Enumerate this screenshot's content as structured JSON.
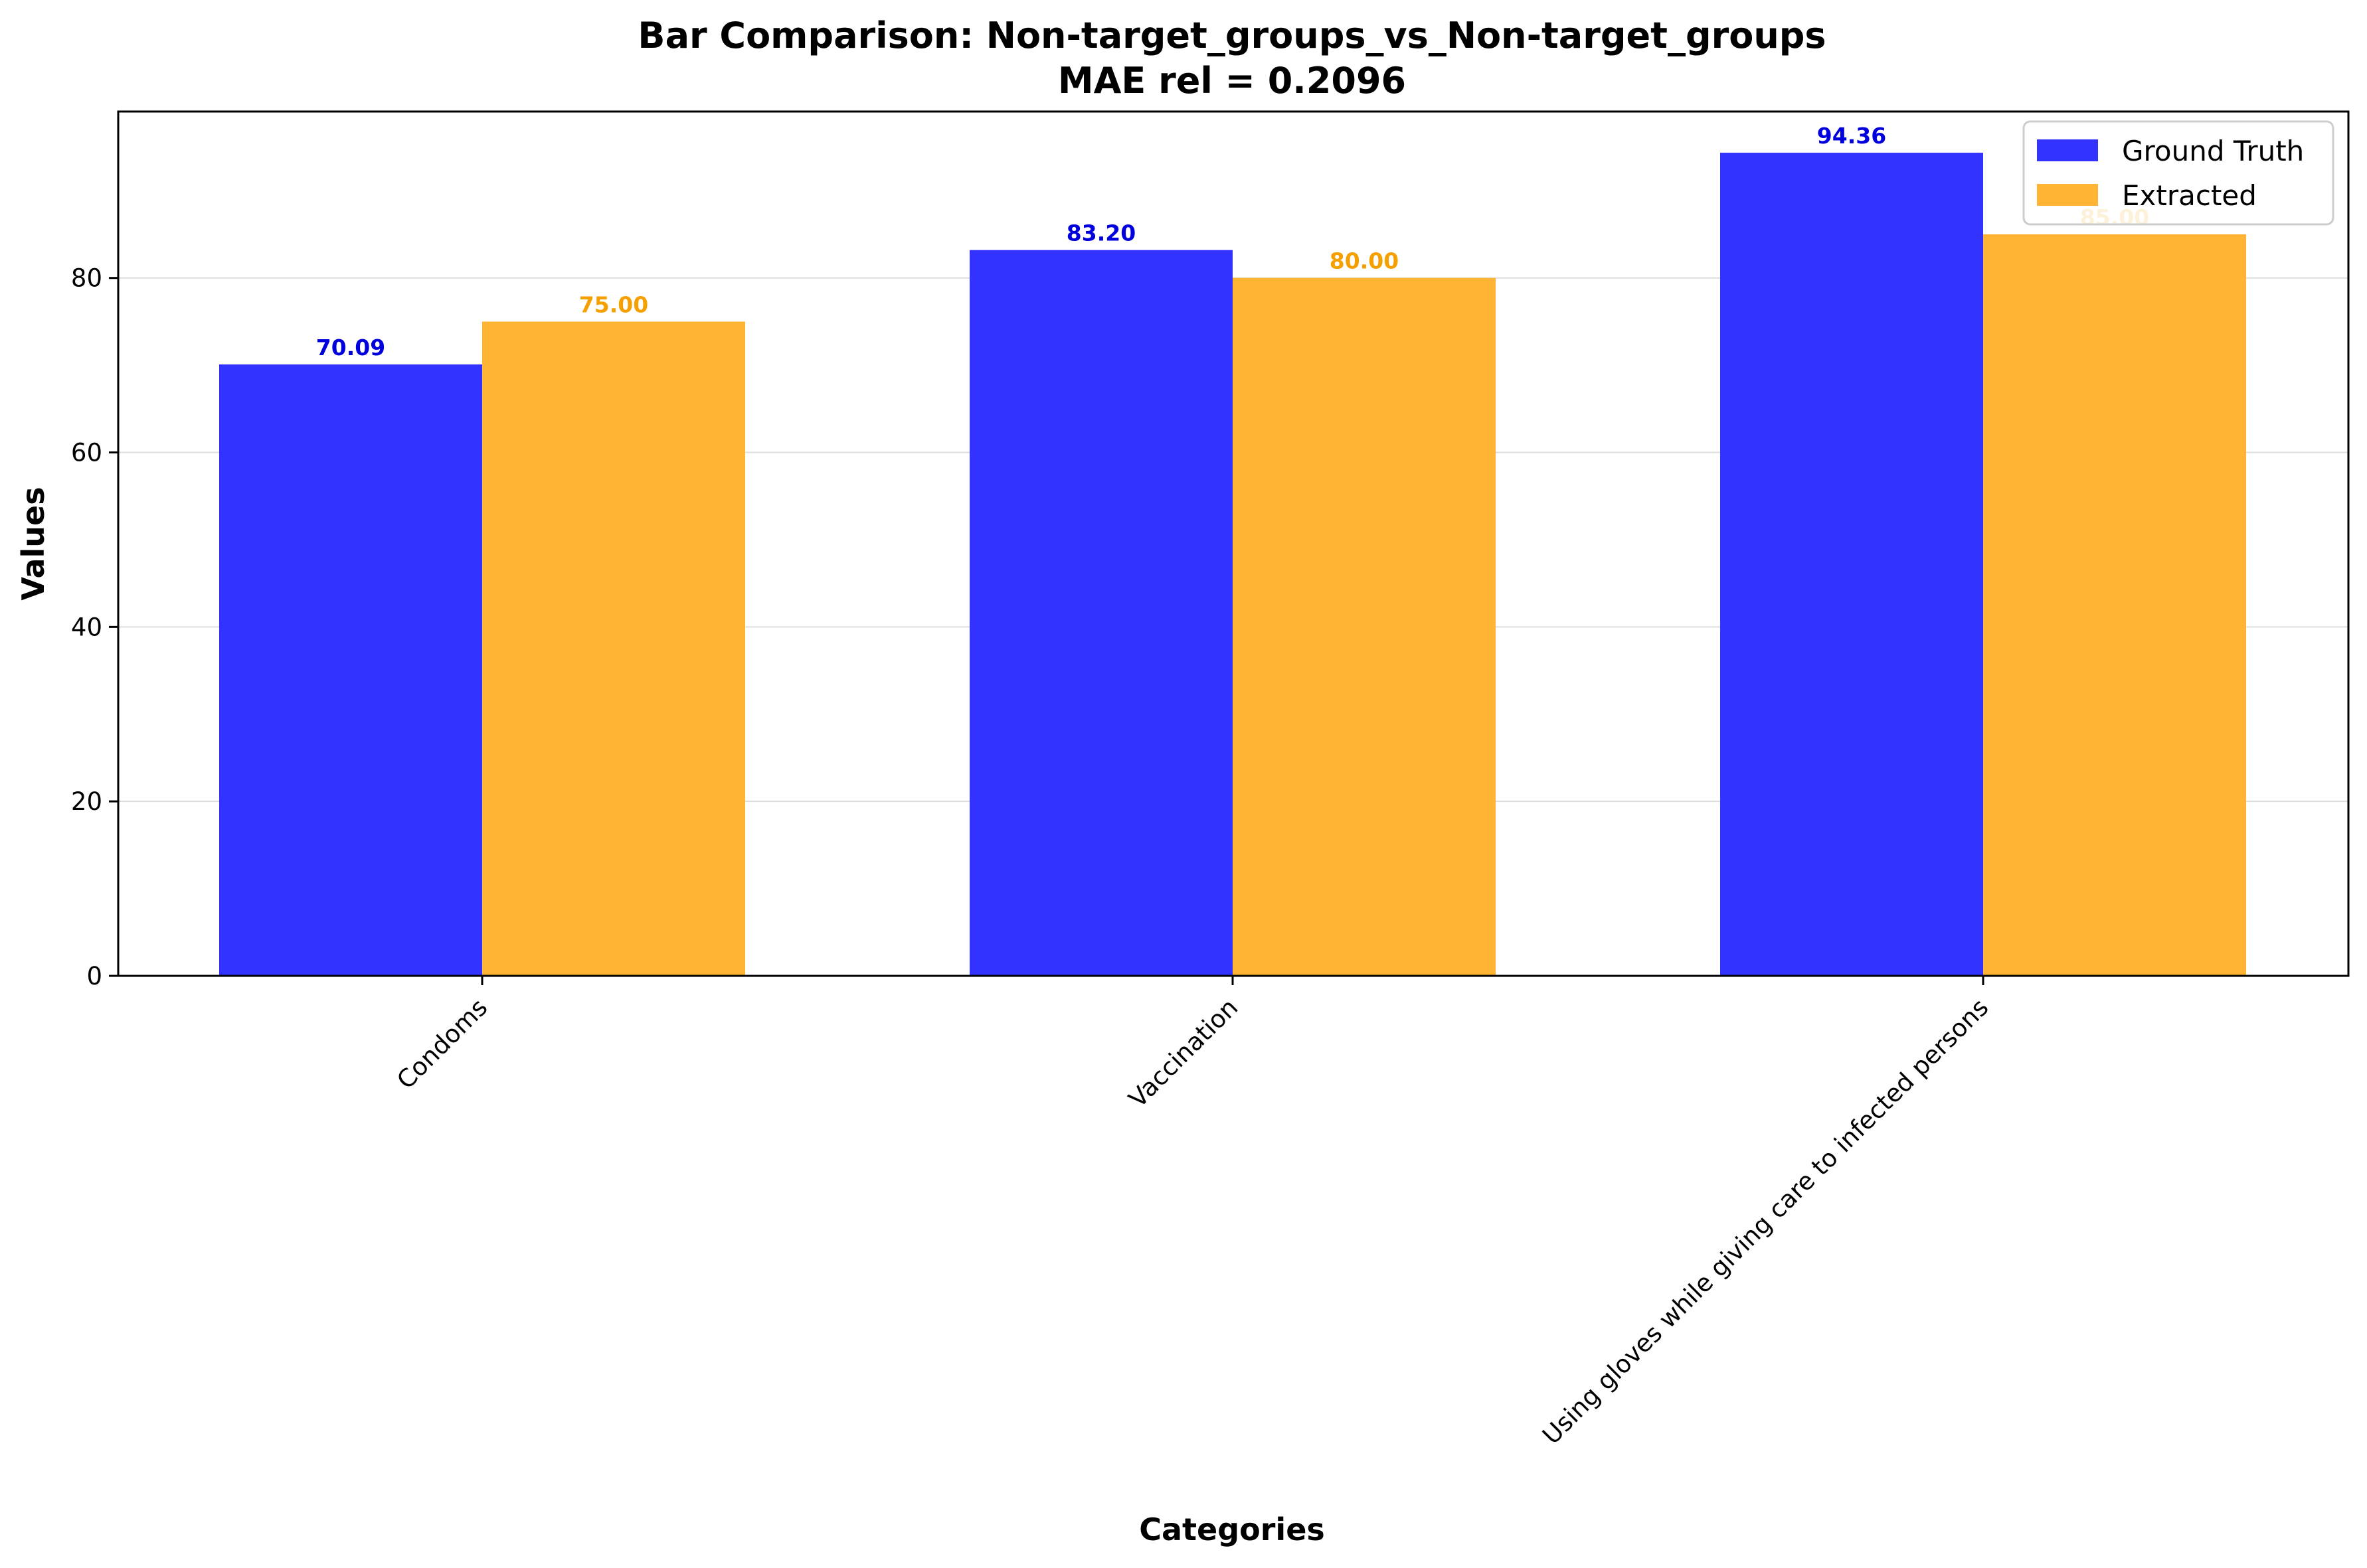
{
  "chart_data": {
    "type": "bar",
    "title": "Bar Comparison: Non-target_groups_vs_Non-target_groups",
    "subtitle": "MAE rel = 0.2096",
    "xlabel": "Categories",
    "ylabel": "Values",
    "categories": [
      "Condoms",
      "Vaccination",
      "Using gloves while giving care to infected persons"
    ],
    "series": [
      {
        "name": "Ground Truth",
        "color": "#3333ff",
        "label_color": "#0000dd",
        "values": [
          70.09,
          83.2,
          94.36
        ],
        "labels": [
          "70.09",
          "83.20",
          "94.36"
        ]
      },
      {
        "name": "Extracted",
        "color": "#ffb533",
        "label_color": "#f5a000",
        "values": [
          75.0,
          80.0,
          85.0
        ],
        "labels": [
          "75.00",
          "80.00",
          "85.00"
        ]
      }
    ],
    "ylim": [
      0,
      99.08
    ],
    "yticks": [
      0,
      20,
      40,
      60,
      80
    ],
    "ytick_labels": [
      "0",
      "20",
      "40",
      "60",
      "80"
    ],
    "grid": "y",
    "legend_position": "top-right"
  }
}
